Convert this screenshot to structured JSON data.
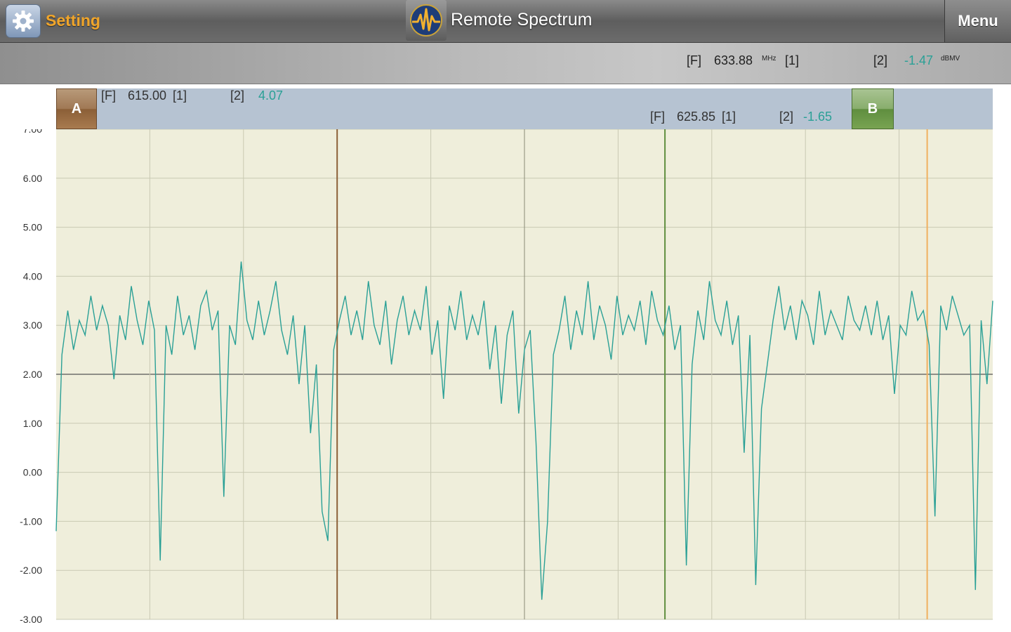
{
  "header": {
    "setting_label": "Setting",
    "title": "Remote Spectrum",
    "menu_label": "Menu",
    "icons": {
      "setting": "gear-icon",
      "logo": "waveform-logo-icon"
    }
  },
  "readout": {
    "f_tag": "[F]",
    "frequency": "633.88",
    "frequency_unit": "MHz",
    "trace1_tag": "[1]",
    "trace2_tag": "[2]",
    "level": "-1.47",
    "level_unit": "dBMV"
  },
  "markers": {
    "a": {
      "label": "A",
      "f_tag": "[F]",
      "frequency": "615.00",
      "trace1_tag": "[1]",
      "trace2_tag": "[2]",
      "level": "4.07",
      "color": "#8b5f37"
    },
    "b": {
      "label": "B",
      "f_tag": "[F]",
      "frequency": "625.85",
      "trace1_tag": "[1]",
      "trace2_tag": "[2]",
      "level": "-1.65",
      "color": "#5f8e3f"
    }
  },
  "colors": {
    "trace": "#2aa096",
    "plot_bg": "#efeedb",
    "grid": "#c9c9b3",
    "cursor_orange": "#f0b060"
  },
  "chart_data": {
    "type": "line",
    "y_tick_labels": [
      "7.00",
      "6.00",
      "5.00",
      "4.00",
      "3.00",
      "2.00",
      "1.00",
      "0.00",
      "-1.00",
      "-2.00",
      "-3.00"
    ],
    "ylim": [
      -3,
      7
    ],
    "grid": true,
    "reference_level": 2,
    "x_index_range": [
      0,
      10
    ],
    "vertical_markers": [
      {
        "name": "A",
        "x_index": 3.0
      },
      {
        "name": "B",
        "x_index": 6.5
      },
      {
        "name": "cursor",
        "x_index": 9.3
      }
    ],
    "series": [
      {
        "values": [
          -1.2,
          2.4,
          3.3,
          2.5,
          3.1,
          2.8,
          3.6,
          2.9,
          3.4,
          3.0,
          1.9,
          3.2,
          2.7,
          3.8,
          3.1,
          2.6,
          3.5,
          2.9,
          -1.8,
          3.0,
          2.4,
          3.6,
          2.8,
          3.2,
          2.5,
          3.4,
          3.7,
          2.9,
          3.3,
          -0.5,
          3.0,
          2.6,
          4.3,
          3.1,
          2.7,
          3.5,
          2.8,
          3.3,
          3.9,
          2.9,
          2.4,
          3.2,
          1.8,
          3.0,
          0.8,
          2.2,
          -0.8,
          -1.4,
          2.5,
          3.1,
          3.6,
          2.8,
          3.3,
          2.7,
          3.9,
          3.0,
          2.6,
          3.5,
          2.2,
          3.1,
          3.6,
          2.8,
          3.3,
          2.9,
          3.8,
          2.4,
          3.1,
          1.5,
          3.4,
          2.9,
          3.7,
          2.7,
          3.2,
          2.8,
          3.5,
          2.1,
          3.0,
          1.4,
          2.8,
          3.3,
          1.2,
          2.5,
          2.9,
          0.6,
          -2.6,
          -1.0,
          2.4,
          2.9,
          3.6,
          2.5,
          3.3,
          2.8,
          3.9,
          2.7,
          3.4,
          3.0,
          2.3,
          3.6,
          2.8,
          3.2,
          2.9,
          3.5,
          2.6,
          3.7,
          3.1,
          2.8,
          3.4,
          2.5,
          3.0,
          -1.9,
          2.2,
          3.3,
          2.7,
          3.9,
          3.1,
          2.8,
          3.5,
          2.6,
          3.2,
          0.4,
          2.8,
          -2.3,
          1.3,
          2.2,
          3.1,
          3.8,
          2.9,
          3.4,
          2.7,
          3.5,
          3.2,
          2.6,
          3.7,
          2.8,
          3.3,
          3.0,
          2.7,
          3.6,
          3.1,
          2.9,
          3.4,
          2.8,
          3.5,
          2.7,
          3.2,
          1.6,
          3.0,
          2.8,
          3.7,
          3.1,
          3.3,
          2.6,
          -0.9,
          3.4,
          2.9,
          3.6,
          3.2,
          2.8,
          3.0,
          -2.4,
          3.1,
          1.8,
          3.5
        ]
      }
    ]
  }
}
